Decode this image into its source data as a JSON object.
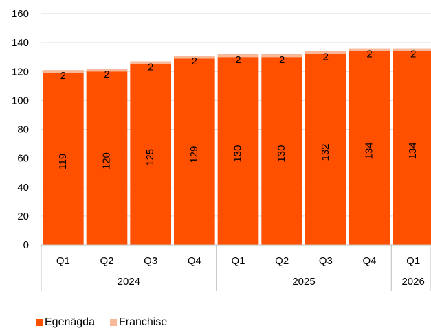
{
  "chart_data": {
    "type": "bar",
    "stacked": true,
    "ylim": [
      0,
      160
    ],
    "yticks": [
      0,
      20,
      40,
      60,
      80,
      100,
      120,
      140,
      160
    ],
    "grid": true,
    "categories": [
      "Q1",
      "Q2",
      "Q3",
      "Q4",
      "Q1",
      "Q2",
      "Q3",
      "Q4",
      "Q1"
    ],
    "groups": [
      {
        "label": "2024",
        "count": 4
      },
      {
        "label": "2025",
        "count": 4
      },
      {
        "label": "2026",
        "count": 1
      }
    ],
    "series": [
      {
        "name": "Egenägda",
        "color": "#FF5000",
        "values": [
          119,
          120,
          125,
          129,
          130,
          130,
          132,
          134,
          134
        ]
      },
      {
        "name": "Franchise",
        "color": "#F8B89A",
        "values": [
          2,
          2,
          2,
          2,
          2,
          2,
          2,
          2,
          2
        ]
      }
    ],
    "legend_position": "bottom-left"
  },
  "legend": {
    "items": [
      {
        "label": "Egenägda",
        "color": "#FF5000"
      },
      {
        "label": "Franchise",
        "color": "#F8B89A"
      }
    ]
  }
}
